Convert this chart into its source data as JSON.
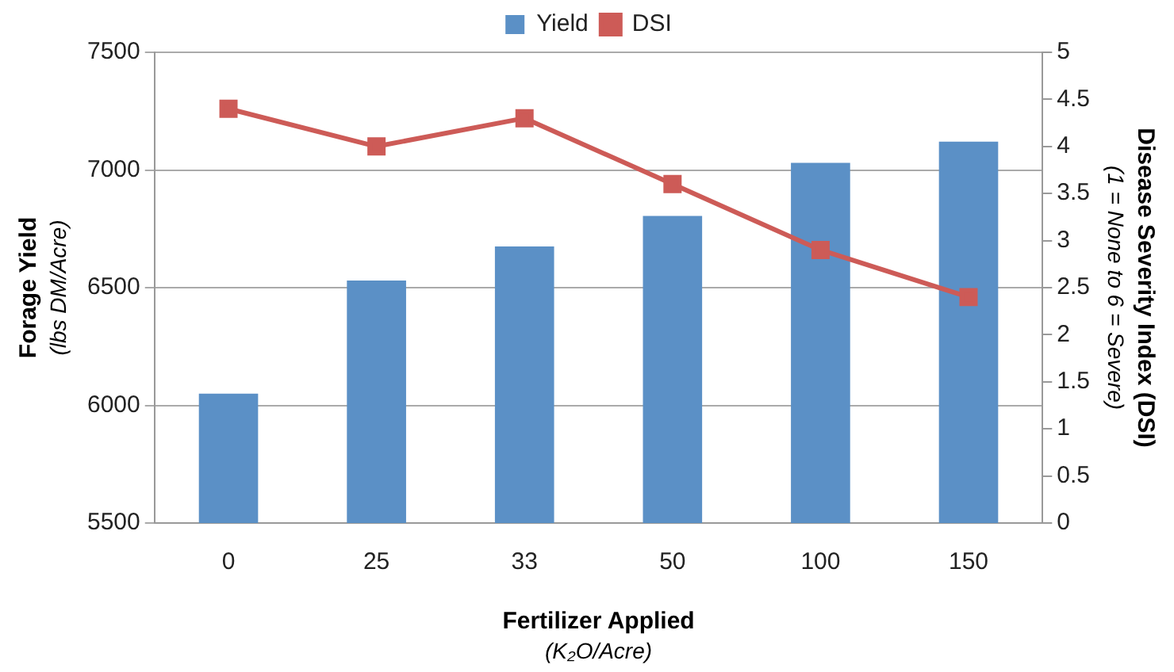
{
  "chart_data": {
    "type": "bar",
    "xlabel": "Fertilizer Applied\n(K₂O/Acre)",
    "ylabel": "Forage Yield\n(lbs DM/Acre)",
    "y2label": "Disease Severity Index (DSI)\n(1 = None to 6 = Severe)",
    "categories": [
      "0",
      "25",
      "33",
      "50",
      "100",
      "150"
    ],
    "series": [
      {
        "name": "Yield",
        "color": "#5b90c6",
        "values": [
          6050,
          6530,
          6675,
          6805,
          7030,
          7120
        ]
      },
      {
        "name": "DSI",
        "type": "line",
        "axis": "y2",
        "color": "#cd5b57",
        "marker": "square",
        "values": [
          4.4,
          4.0,
          4.3,
          3.6,
          2.9,
          2.4
        ]
      }
    ],
    "ylim": [
      5500,
      7500
    ],
    "yticks": [
      5500,
      6000,
      6500,
      7000,
      7500
    ],
    "y2lim": [
      0,
      5
    ],
    "y2ticks": [
      0,
      0.5,
      1,
      1.5,
      2,
      2.5,
      3,
      3.5,
      4,
      4.5,
      5
    ],
    "grid": "y",
    "legend": "top"
  }
}
